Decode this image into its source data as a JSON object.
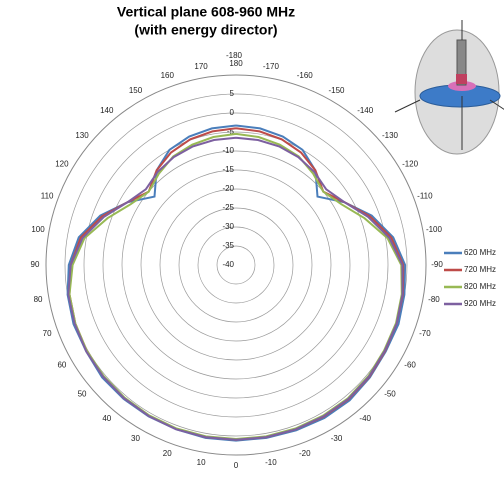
{
  "chart_data": {
    "type": "polar",
    "title": "Vertical plane 608-960 MHz",
    "subtitle": "(with energy director)",
    "angles": [
      180,
      170,
      160,
      150,
      140,
      130,
      120,
      110,
      100,
      90,
      80,
      70,
      60,
      50,
      40,
      30,
      20,
      10,
      0,
      -10,
      -20,
      -30,
      -40,
      -50,
      -60,
      -70,
      -80,
      -90,
      -100,
      -110,
      -120,
      -130,
      -140,
      -150,
      -160,
      -170,
      -180
    ],
    "rlim": [
      -40,
      10
    ],
    "rticks": [
      -40,
      -35,
      -30,
      -25,
      -20,
      -15,
      -10,
      -5,
      0,
      5
    ],
    "thetaticks": [
      180,
      170,
      160,
      150,
      140,
      130,
      120,
      110,
      100,
      90,
      80,
      70,
      60,
      50,
      40,
      30,
      20,
      10,
      0,
      -10,
      -20,
      -30,
      -40,
      -50,
      -60,
      -70,
      -80,
      -90,
      -100,
      -110,
      -120,
      -130,
      -140,
      -150,
      -160,
      -170,
      -180
    ],
    "series": [
      {
        "name": "620 MHz",
        "color": "#4a7ebb",
        "values": [
          -3.3,
          -3.5,
          -4,
          -5,
          -7.5,
          -12,
          -7,
          -2,
          2,
          4,
          5,
          5.5,
          5.5,
          6,
          6,
          6,
          6,
          6.2,
          6.2,
          6.2,
          6.3,
          6.5,
          6.5,
          6,
          5.5,
          5.5,
          5,
          4.5,
          2,
          -2,
          -7,
          -12,
          -7.5,
          -5,
          -4,
          -3.5,
          -3.3
        ]
      },
      {
        "name": "720 MHz",
        "color": "#be4b48",
        "values": [
          -4,
          -4.3,
          -4.8,
          -5.8,
          -7.5,
          -10,
          -7,
          -2.5,
          1.5,
          3.5,
          4.5,
          5,
          5.3,
          5.6,
          5.8,
          5.8,
          5.9,
          6,
          6,
          6,
          6,
          6.1,
          6.1,
          5.8,
          5.3,
          5,
          4.6,
          4,
          1.5,
          -2.5,
          -7,
          -10,
          -7.5,
          -5.8,
          -4.8,
          -4.3,
          -4
        ]
      },
      {
        "name": "820 MHz",
        "color": "#98b954",
        "values": [
          -5.5,
          -5.8,
          -6.3,
          -7,
          -8.5,
          -10,
          -8,
          -4,
          0.5,
          3,
          4.5,
          5,
          5.3,
          5.5,
          5.6,
          5.7,
          5.8,
          5.8,
          5.8,
          5.8,
          5.8,
          5.8,
          5.8,
          5.5,
          5,
          4.8,
          4.3,
          3.5,
          0.5,
          -4,
          -8,
          -10,
          -8.5,
          -7,
          -6.3,
          -5.8,
          -5.5
        ]
      },
      {
        "name": "920 MHz",
        "color": "#7d60a0",
        "values": [
          -6.5,
          -6.6,
          -6.8,
          -7.2,
          -8,
          -9,
          -7,
          -3,
          1,
          3.5,
          4.8,
          5.2,
          5.5,
          5.7,
          5.8,
          5.9,
          6,
          6,
          6,
          6,
          6,
          6,
          6,
          5.7,
          5.2,
          5,
          4.5,
          3.8,
          1,
          -3,
          -7,
          -9,
          -8,
          -7.2,
          -6.8,
          -6.6,
          -6.5
        ]
      }
    ]
  }
}
